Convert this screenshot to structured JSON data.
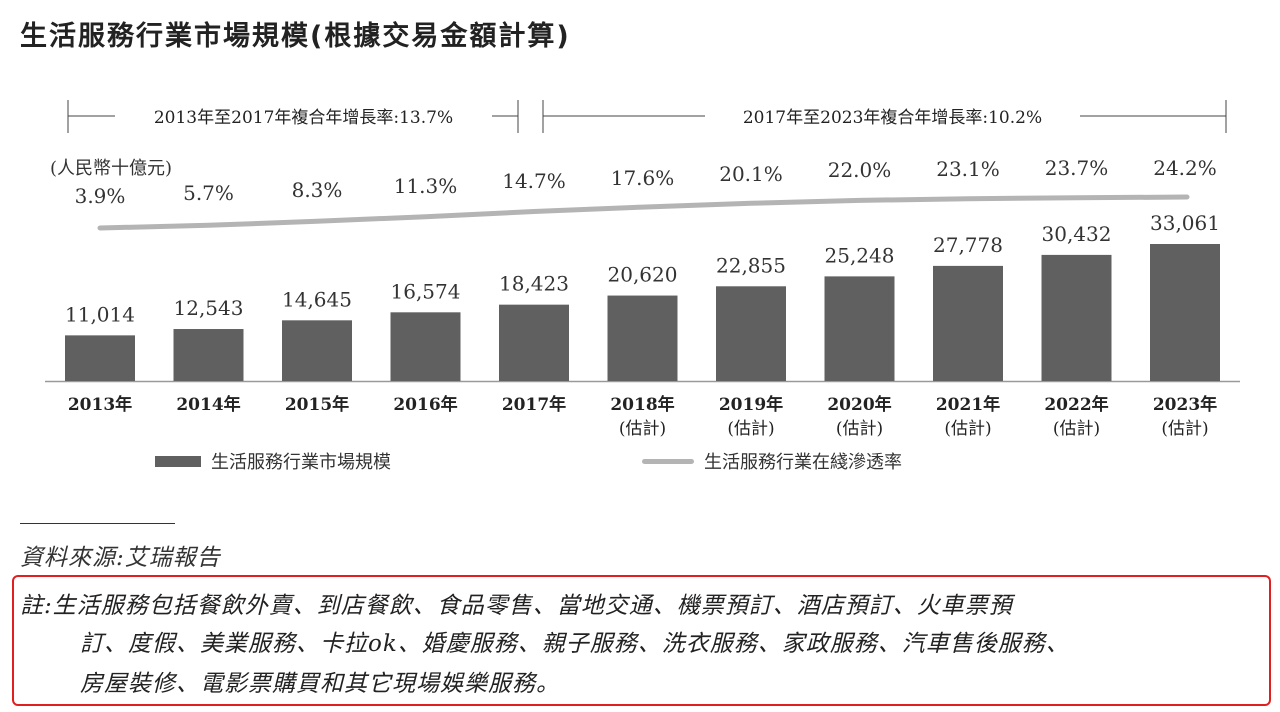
{
  "title": "生活服務行業市場規模(根據交易金額計算)",
  "chart_data": {
    "type": "bar",
    "unit_label": "(人民幣十億元)",
    "categories": [
      "2013年",
      "2014年",
      "2015年",
      "2016年",
      "2017年",
      "2018年",
      "2019年",
      "2020年",
      "2021年",
      "2022年",
      "2023年"
    ],
    "category_subs": [
      "",
      "",
      "",
      "",
      "",
      "(估計)",
      "(估計)",
      "(估計)",
      "(估計)",
      "(估計)",
      "(估計)"
    ],
    "series": [
      {
        "name": "生活服務行業市場規模",
        "kind": "bar",
        "values": [
          11014,
          12543,
          14645,
          16574,
          18423,
          20620,
          22855,
          25248,
          27778,
          30432,
          33061
        ],
        "labels": [
          "11,014",
          "12,543",
          "14,645",
          "16,574",
          "18,423",
          "20,620",
          "22,855",
          "25,248",
          "27,778",
          "30,432",
          "33,061"
        ]
      },
      {
        "name": "生活服務行業在綫滲透率",
        "kind": "line",
        "values": [
          3.9,
          5.7,
          8.3,
          11.3,
          14.7,
          17.6,
          20.1,
          22.0,
          23.1,
          23.7,
          24.2
        ],
        "labels": [
          "3.9%",
          "5.7%",
          "8.3%",
          "11.3%",
          "14.7%",
          "17.6%",
          "20.1%",
          "22.0%",
          "23.1%",
          "23.7%",
          "24.2%"
        ]
      }
    ],
    "ylim": [
      0,
      33061
    ],
    "cagr": [
      {
        "label": "2013年至2017年複合年增長率:13.7%",
        "from": "2013年",
        "to": "2017年"
      },
      {
        "label": "2017年至2023年複合年增長率:10.2%",
        "from": "2017年",
        "to": "2023年"
      }
    ],
    "colors": {
      "bar": "#606060",
      "line": "#b4b4b4",
      "axis": "#999999"
    }
  },
  "source": "資料來源:艾瑞報告",
  "note": {
    "lines": [
      "註:生活服務包括餐飲外賣、到店餐飲、食品零售、當地交通、機票預訂、酒店預訂、火車票預",
      "訂、度假、美業服務、卡拉ok、婚慶服務、親子服務、洗衣服務、家政服務、汽車售後服務、",
      "房屋裝修、電影票購買和其它現場娛樂服務。"
    ]
  }
}
